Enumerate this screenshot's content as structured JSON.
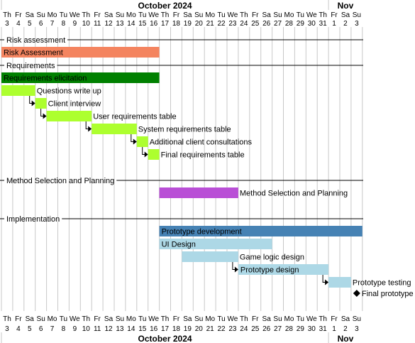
{
  "chart_data": {
    "type": "gantt",
    "title": "",
    "months": [
      {
        "label": "October 2024",
        "start": 0,
        "span": 29
      },
      {
        "label": "Nov",
        "start": 29,
        "span": 3
      }
    ],
    "days": [
      {
        "dow": "Th",
        "dom": "3"
      },
      {
        "dow": "Fr",
        "dom": "4"
      },
      {
        "dow": "Sa",
        "dom": "5"
      },
      {
        "dow": "Su",
        "dom": "6"
      },
      {
        "dow": "Mo",
        "dom": "7"
      },
      {
        "dow": "Tu",
        "dom": "8"
      },
      {
        "dow": "We",
        "dom": "9"
      },
      {
        "dow": "Th",
        "dom": "10"
      },
      {
        "dow": "Fr",
        "dom": "11"
      },
      {
        "dow": "Sa",
        "dom": "12"
      },
      {
        "dow": "Su",
        "dom": "13"
      },
      {
        "dow": "Mo",
        "dom": "14"
      },
      {
        "dow": "Tu",
        "dom": "15"
      },
      {
        "dow": "We",
        "dom": "16"
      },
      {
        "dow": "Th",
        "dom": "17"
      },
      {
        "dow": "Fr",
        "dom": "18"
      },
      {
        "dow": "Sa",
        "dom": "19"
      },
      {
        "dow": "Su",
        "dom": "20"
      },
      {
        "dow": "Mo",
        "dom": "21"
      },
      {
        "dow": "Tu",
        "dom": "22"
      },
      {
        "dow": "We",
        "dom": "23"
      },
      {
        "dow": "Th",
        "dom": "24"
      },
      {
        "dow": "Fr",
        "dom": "25"
      },
      {
        "dow": "Sa",
        "dom": "26"
      },
      {
        "dow": "Su",
        "dom": "27"
      },
      {
        "dow": "Mo",
        "dom": "28"
      },
      {
        "dow": "Tu",
        "dom": "29"
      },
      {
        "dow": "We",
        "dom": "30"
      },
      {
        "dow": "Th",
        "dom": "31"
      },
      {
        "dow": "Fr",
        "dom": "1"
      },
      {
        "dow": "Sa",
        "dom": "2"
      },
      {
        "dow": "Su",
        "dom": "3"
      }
    ],
    "separators": [
      {
        "label": "Risk assessment",
        "row": 0
      },
      {
        "label": "Requirements",
        "row": 2
      },
      {
        "label": "Method Selection and Planning",
        "row": 11
      },
      {
        "label": "Implementation",
        "row": 14
      }
    ],
    "tasks": [
      {
        "name": "Risk Assessment",
        "start": "2024-10-03",
        "end": "2024-10-16",
        "row": 1,
        "color": "#f4845f",
        "label_inside": true
      },
      {
        "name": "Requirements elicitation",
        "start": "2024-10-03",
        "end": "2024-10-16",
        "row": 3,
        "color": "#008000",
        "label_inside": true
      },
      {
        "name": "Questions write up",
        "start": "2024-10-03",
        "end": "2024-10-05",
        "row": 4,
        "color": "#adff2f",
        "label_inside": false
      },
      {
        "name": "Client interview",
        "start": "2024-10-06",
        "end": "2024-10-06",
        "row": 5,
        "color": "#adff2f",
        "label_inside": false
      },
      {
        "name": "User requirements table",
        "start": "2024-10-07",
        "end": "2024-10-10",
        "row": 6,
        "color": "#adff2f",
        "label_inside": false
      },
      {
        "name": "System requirements table",
        "start": "2024-10-11",
        "end": "2024-10-14",
        "row": 7,
        "color": "#adff2f",
        "label_inside": false
      },
      {
        "name": "Additional client consultations",
        "start": "2024-10-15",
        "end": "2024-10-15",
        "row": 8,
        "color": "#adff2f",
        "label_inside": false
      },
      {
        "name": "Final requirements table",
        "start": "2024-10-16",
        "end": "2024-10-16",
        "row": 9,
        "color": "#adff2f",
        "label_inside": false
      },
      {
        "name": "Method Selection and Planning",
        "start": "2024-10-17",
        "end": "2024-10-23",
        "row": 12,
        "color": "#b94fd6",
        "label_inside": false
      },
      {
        "name": "Prototype development",
        "start": "2024-10-17",
        "end": "2024-11-03",
        "row": 15,
        "color": "#4682b4",
        "label_inside": true
      },
      {
        "name": "UI Design",
        "start": "2024-10-17",
        "end": "2024-10-26",
        "row": 16,
        "color": "#add8e6",
        "label_inside": true
      },
      {
        "name": "Game logic design",
        "start": "2024-10-19",
        "end": "2024-10-23",
        "row": 17,
        "color": "#add8e6",
        "label_inside": false
      },
      {
        "name": "Prototype design",
        "start": "2024-10-24",
        "end": "2024-10-31",
        "row": 18,
        "color": "#add8e6",
        "label_inside": true
      },
      {
        "name": "Prototype testing",
        "start": "2024-11-01",
        "end": "2024-11-02",
        "row": 19,
        "color": "#add8e6",
        "label_inside": false
      }
    ],
    "milestones": [
      {
        "name": "Final prototype",
        "date": "2024-11-03",
        "row": 20
      }
    ],
    "dependencies": [
      {
        "from": "Questions write up",
        "to": "Client interview"
      },
      {
        "from": "Client interview",
        "to": "User requirements table"
      },
      {
        "from": "User requirements table",
        "to": "System requirements table"
      },
      {
        "from": "System requirements table",
        "to": "Additional client consultations"
      },
      {
        "from": "Additional client consultations",
        "to": "Final requirements table"
      },
      {
        "from": "Game logic design",
        "to": "Prototype design"
      },
      {
        "from": "Prototype design",
        "to": "Prototype testing"
      }
    ]
  }
}
